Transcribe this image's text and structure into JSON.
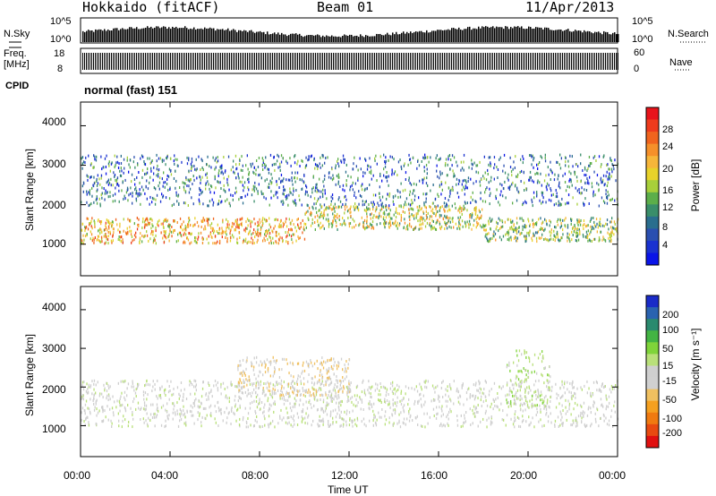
{
  "header": {
    "station": "Hokkaido (fitACF)",
    "beam": "Beam 01",
    "date": "11/Apr/2013"
  },
  "strip": {
    "nsky_label": "N.Sky",
    "nsky_ticks": [
      "10^5",
      "10^0"
    ],
    "nsearch_label": "N.Search",
    "nsearch_ticks": [
      "10^5",
      "10^0"
    ],
    "freq_label_line1": "Freq.",
    "freq_label_line2": "[MHz]",
    "freq_ticks": [
      "18",
      "8"
    ],
    "nave_label": "Nave",
    "nave_ticks": [
      "60",
      "0"
    ],
    "cpid_label": "CPID",
    "cpid_value": "normal (fast) 151"
  },
  "colorbars": {
    "power_label": "Power [dB]",
    "power_ticks": [
      "28",
      "24",
      "20",
      "16",
      "12",
      "8",
      "4"
    ],
    "power_colors": [
      "#e8141b",
      "#ee3b1d",
      "#f0641e",
      "#f5902a",
      "#f6b63a",
      "#e8d22a",
      "#a8cf3a",
      "#5cae4a",
      "#3a8e6a",
      "#2a6e8e",
      "#2a4fb0",
      "#1a32d0",
      "#0a14e8"
    ],
    "velocity_label": "Velocity [m s⁻¹]",
    "velocity_ticks": [
      "200",
      "100",
      "50",
      "15",
      "-15",
      "-50",
      "-100",
      "-200"
    ],
    "velocity_colors": [
      "#1a2bc8",
      "#2a63b0",
      "#2a8a6e",
      "#43b443",
      "#7fd43a",
      "#b9e07a",
      "#cfcfcf",
      "#d0d0d0",
      "#f0c060",
      "#f5a020",
      "#f07a10",
      "#e84a10",
      "#e01010"
    ]
  },
  "axes": {
    "ylabel": "Slant Range [km]",
    "yticks": [
      "4000",
      "3000",
      "2000",
      "1000"
    ],
    "xticks": [
      "00:00",
      "04:00",
      "08:00",
      "12:00",
      "16:00",
      "20:00",
      "00:00"
    ],
    "xlabel": "Time UT"
  },
  "chart_data": [
    {
      "type": "heatmap",
      "quantity": "Power",
      "x_unit": "hours UT",
      "xlim": [
        0,
        24
      ],
      "ylim": [
        200,
        4600
      ],
      "zlim": [
        0,
        30
      ],
      "bands": [
        {
          "t_start": 0,
          "t_end": 10,
          "r_low": 1050,
          "r_high": 1700,
          "power": 20
        },
        {
          "t_start": 10,
          "t_end": 18,
          "r_low": 1400,
          "r_high": 2000,
          "power": 16
        },
        {
          "t_start": 18,
          "t_end": 24,
          "r_low": 1100,
          "r_high": 1700,
          "power": 14
        },
        {
          "t_start": 0,
          "t_end": 24,
          "r_low": 2000,
          "r_high": 3300,
          "power": 8
        }
      ]
    },
    {
      "type": "heatmap",
      "quantity": "Velocity",
      "x_unit": "hours UT",
      "xlim": [
        0,
        24
      ],
      "ylim": [
        200,
        4600
      ],
      "zlim": [
        -200,
        200
      ],
      "bands": [
        {
          "t_start": 0,
          "t_end": 24,
          "r_low": 1000,
          "r_high": 2200,
          "velocity": 0
        },
        {
          "t_start": 7,
          "t_end": 12,
          "r_low": 1800,
          "r_high": 2800,
          "velocity": -40
        },
        {
          "t_start": 19,
          "t_end": 21,
          "r_low": 1500,
          "r_high": 3000,
          "velocity": 30
        }
      ]
    }
  ]
}
